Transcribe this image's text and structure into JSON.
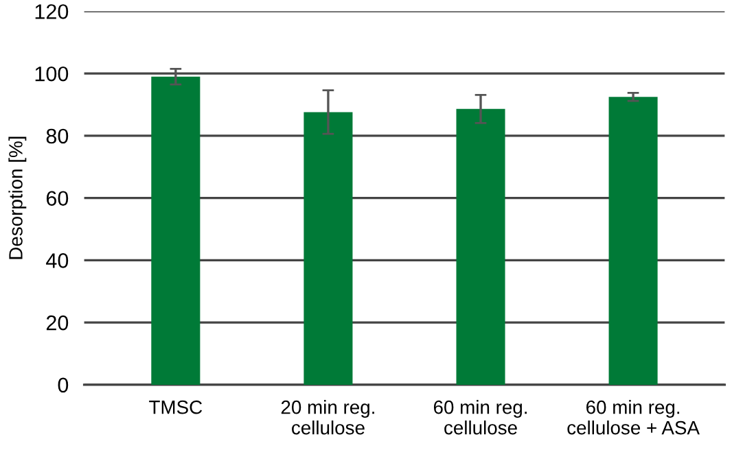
{
  "chart_data": {
    "type": "bar",
    "ylabel": "Desorption [%]",
    "categories": [
      "TMSC",
      "20 min reg.\ncellulose",
      "60 min reg.\ncellulose",
      "60 min reg.\ncellulose + ASA"
    ],
    "values": [
      99,
      87.6,
      88.6,
      92.5
    ],
    "errors": [
      2.5,
      7,
      4.5,
      1.3
    ],
    "color": "#007a37",
    "ylim": [
      0,
      120
    ],
    "yticks": [
      0,
      20,
      40,
      60,
      80,
      100,
      120
    ],
    "grid": "y",
    "legend": false
  }
}
